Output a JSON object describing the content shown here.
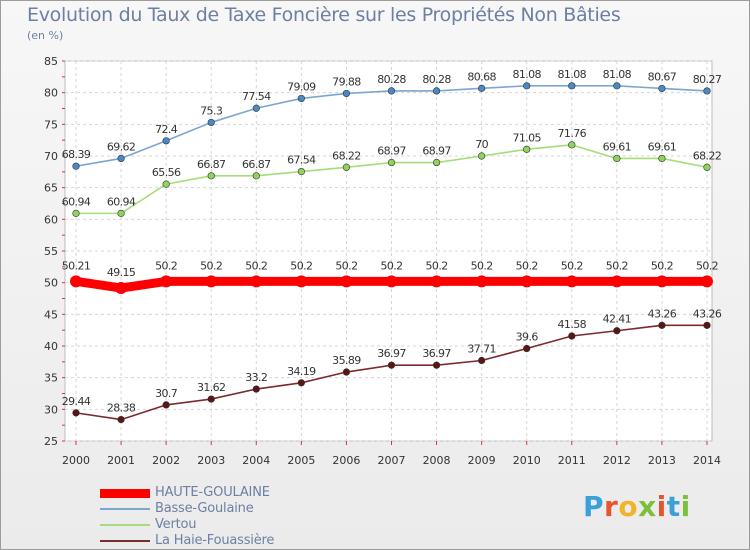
{
  "chart_data": {
    "type": "line",
    "title": "Evolution du Taux de Taxe Foncière sur les Propriétés Non Bâties",
    "subtitle": "(en %)",
    "x": [
      "2000",
      "2001",
      "2002",
      "2003",
      "2004",
      "2005",
      "2006",
      "2007",
      "2008",
      "2009",
      "2010",
      "2011",
      "2012",
      "2013",
      "2014"
    ],
    "ylim": [
      25,
      85
    ],
    "yticks": [
      25,
      30,
      35,
      40,
      45,
      50,
      55,
      60,
      65,
      70,
      75,
      80,
      85
    ],
    "grid": true,
    "legend_position": "bottom-left",
    "series": [
      {
        "name": "Basse-Goulaine",
        "color": "#7ca6d0",
        "marker": "#4a88c6",
        "values": [
          68.39,
          69.62,
          72.4,
          75.3,
          77.54,
          79.09,
          79.88,
          80.28,
          80.28,
          80.68,
          81.08,
          81.08,
          81.08,
          80.67,
          80.27
        ],
        "labels": [
          "68.39",
          "69.62",
          "72.4",
          "75.3",
          "77.54",
          "79.09",
          "79.88",
          "80.28",
          "80.28",
          "80.68",
          "81.08",
          "81.08",
          "81.08",
          "80.67",
          "80.27"
        ]
      },
      {
        "name": "Vertou",
        "color": "#a6dc7a",
        "marker": "#8ed45b",
        "values": [
          60.94,
          60.94,
          65.56,
          66.87,
          66.87,
          67.54,
          68.22,
          68.97,
          68.97,
          70,
          71.05,
          71.76,
          69.61,
          69.61,
          68.22
        ],
        "labels": [
          "60.94",
          "60.94",
          "65.56",
          "66.87",
          "66.87",
          "67.54",
          "68.22",
          "68.97",
          "68.97",
          "70",
          "71.05",
          "71.76",
          "69.61",
          "69.61",
          "68.22"
        ]
      },
      {
        "name": "HAUTE-GOULAINE",
        "color": "#ff0000",
        "marker": "#ff0000",
        "values": [
          50.21,
          49.15,
          50.2,
          50.2,
          50.2,
          50.2,
          50.2,
          50.2,
          50.2,
          50.2,
          50.2,
          50.2,
          50.2,
          50.2,
          50.2
        ],
        "labels": [
          "50.21",
          "49.15",
          "50.2",
          "50.2",
          "50.2",
          "50.2",
          "50.2",
          "50.2",
          "50.2",
          "50.2",
          "50.2",
          "50.2",
          "50.2",
          "50.2",
          "50.2"
        ]
      },
      {
        "name": "La Haie-Fouassière",
        "color": "#7a2b2b",
        "marker": "#5a1515",
        "values": [
          29.44,
          28.38,
          30.7,
          31.62,
          33.2,
          34.19,
          35.89,
          36.97,
          36.97,
          37.71,
          39.6,
          41.58,
          42.41,
          43.26,
          43.26
        ],
        "labels": [
          "29.44",
          "28.38",
          "30.7",
          "31.62",
          "33.2",
          "34.19",
          "35.89",
          "36.97",
          "36.97",
          "37.71",
          "39.6",
          "41.58",
          "42.41",
          "43.26",
          "43.26"
        ]
      }
    ]
  },
  "legend": [
    {
      "label": "HAUTE-GOULAINE",
      "color": "#ff0000"
    },
    {
      "label": "Basse-Goulaine",
      "color": "#7ca6d0"
    },
    {
      "label": "Vertou",
      "color": "#a6dc7a"
    },
    {
      "label": "La Haie-Fouassière",
      "color": "#7a2b2b"
    }
  ],
  "logo": {
    "letters": [
      "P",
      "r",
      "o",
      "x",
      "i",
      "t",
      "i"
    ],
    "colors": [
      "#3aa0d8",
      "#e4572e",
      "#f0b429",
      "#7cbf3a",
      "#e4572e",
      "#3aa0d8",
      "#7cbf3a"
    ]
  }
}
